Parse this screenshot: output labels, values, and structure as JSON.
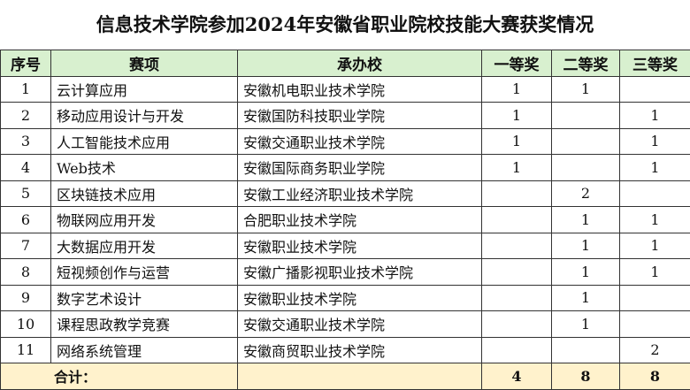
{
  "title": "信息技术学院参加2024年安徽省职业院校技能大赛获奖情况",
  "headers": [
    "序号",
    "赛项",
    "承办校",
    "一等奖",
    "二等奖",
    "三等奖"
  ],
  "rows": [
    [
      "1",
      "云计算应用",
      "安徽机电职业技术学院",
      "1",
      "1",
      ""
    ],
    [
      "2",
      "移动应用设计与开发",
      "安徽国防科技职业学院",
      "1",
      "",
      "1"
    ],
    [
      "3",
      "人工智能技术应用",
      "安徽交通职业技术学院",
      "1",
      "",
      "1"
    ],
    [
      "4",
      "Web技术",
      "安徽国际商务职业学院",
      "1",
      "",
      "1"
    ],
    [
      "5",
      "区块链技术应用",
      "安徽工业经济职业技术学院",
      "",
      "2",
      ""
    ],
    [
      "6",
      "物联网应用开发",
      "合肥职业技术学院",
      "",
      "1",
      "1"
    ],
    [
      "7",
      "大数据应用开发",
      "安徽职业技术学院",
      "",
      "1",
      "1"
    ],
    [
      "8",
      "短视频创作与运营",
      "安徽广播影视职业技术学院",
      "",
      "1",
      "1"
    ],
    [
      "9",
      "数字艺术设计",
      "安徽职业技术学院",
      "",
      "1",
      ""
    ],
    [
      "10",
      "课程思政教学竞赛",
      "安徽交通职业技术学院",
      "",
      "1",
      ""
    ],
    [
      "11",
      "网络系统管理",
      "安徽商贸职业技术学院",
      "",
      "",
      "2"
    ]
  ],
  "total": {
    "label": "合计：",
    "first": "4",
    "second": "8",
    "third": "8"
  }
}
